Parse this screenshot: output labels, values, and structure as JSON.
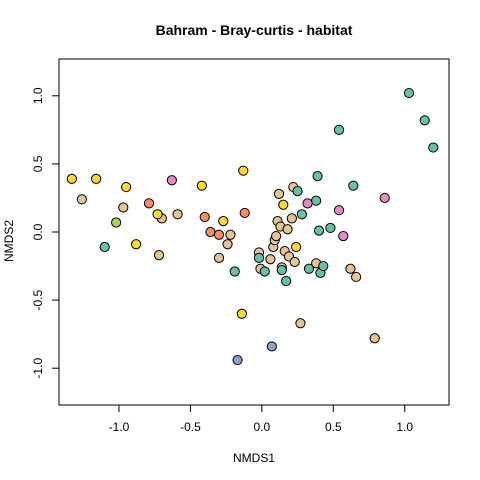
{
  "chart_data": {
    "type": "scatter",
    "title": "Bahram - Bray-curtis - habitat",
    "xlabel": "NMDS1",
    "ylabel": "NMDS2",
    "xlim": [
      -1.42,
      1.31
    ],
    "ylim": [
      -1.27,
      1.27
    ],
    "xticks": [
      -1.0,
      -0.5,
      0.0,
      0.5,
      1.0
    ],
    "xtick_labels": [
      "-1.0",
      "-0.5",
      "0.0",
      "0.5",
      "1.0"
    ],
    "yticks": [
      -1.0,
      -0.5,
      0.0,
      0.5,
      1.0
    ],
    "ytick_labels": [
      "-1.0",
      "-0.5",
      "0.0",
      "0.5",
      "1.0"
    ],
    "grid": false,
    "legend": "none",
    "series": [
      {
        "color": "#E5C494",
        "points": [
          [
            -1.26,
            0.24
          ],
          [
            -0.97,
            0.18
          ],
          [
            -0.7,
            0.1
          ],
          [
            -0.59,
            0.13
          ],
          [
            -0.72,
            -0.17
          ],
          [
            -0.3,
            -0.19
          ],
          [
            -0.22,
            -0.02
          ],
          [
            -0.24,
            -0.09
          ],
          [
            -0.02,
            -0.15
          ],
          [
            -0.01,
            -0.27
          ],
          [
            0.06,
            -0.2
          ],
          [
            0.08,
            -0.11
          ],
          [
            0.09,
            -0.06
          ],
          [
            0.1,
            -0.03
          ],
          [
            0.11,
            0.08
          ],
          [
            0.12,
            0.28
          ],
          [
            0.13,
            0.04
          ],
          [
            0.14,
            -0.26
          ],
          [
            0.16,
            -0.14
          ],
          [
            0.18,
            0.02
          ],
          [
            0.19,
            -0.18
          ],
          [
            0.21,
            0.1
          ],
          [
            0.22,
            0.33
          ],
          [
            0.23,
            -0.22
          ],
          [
            0.27,
            -0.67
          ],
          [
            0.38,
            -0.23
          ],
          [
            0.62,
            -0.27
          ],
          [
            0.66,
            -0.33
          ],
          [
            0.79,
            -0.78
          ]
        ]
      },
      {
        "color": "#66C2A5",
        "points": [
          [
            -1.1,
            -0.11
          ],
          [
            -0.19,
            -0.29
          ],
          [
            -0.02,
            -0.19
          ],
          [
            0.02,
            -0.29
          ],
          [
            0.14,
            -0.28
          ],
          [
            0.17,
            -0.36
          ],
          [
            0.25,
            0.3
          ],
          [
            0.28,
            0.13
          ],
          [
            0.33,
            -0.27
          ],
          [
            0.38,
            0.23
          ],
          [
            0.39,
            0.41
          ],
          [
            0.4,
            0.01
          ],
          [
            0.41,
            -0.3
          ],
          [
            0.43,
            -0.25
          ],
          [
            0.48,
            0.03
          ],
          [
            0.54,
            0.75
          ],
          [
            0.64,
            0.34
          ],
          [
            1.03,
            1.02
          ],
          [
            1.14,
            0.82
          ],
          [
            1.2,
            0.62
          ]
        ]
      },
      {
        "color": "#FFD92F",
        "points": [
          [
            -1.33,
            0.39
          ],
          [
            -1.16,
            0.39
          ],
          [
            -0.95,
            0.33
          ],
          [
            -0.88,
            -0.09
          ],
          [
            -0.73,
            0.13
          ],
          [
            -0.42,
            0.34
          ],
          [
            -0.27,
            0.08
          ],
          [
            -0.13,
            0.45
          ],
          [
            -0.14,
            -0.6
          ],
          [
            0.15,
            0.2
          ],
          [
            0.24,
            -0.11
          ]
        ]
      },
      {
        "color": "#FC8D62",
        "points": [
          [
            -0.79,
            0.21
          ],
          [
            -0.4,
            0.11
          ],
          [
            -0.36,
            0.0
          ],
          [
            -0.3,
            -0.02
          ],
          [
            -0.12,
            0.14
          ]
        ]
      },
      {
        "color": "#E78AC3",
        "points": [
          [
            -0.63,
            0.38
          ],
          [
            0.32,
            0.21
          ],
          [
            0.54,
            0.16
          ],
          [
            0.57,
            -0.03
          ],
          [
            0.86,
            0.25
          ]
        ]
      },
      {
        "color": "#8DA0CB",
        "points": [
          [
            -0.17,
            -0.94
          ],
          [
            0.07,
            -0.84
          ]
        ]
      },
      {
        "color": "#A6D854",
        "points": [
          [
            -1.02,
            0.07
          ]
        ]
      }
    ]
  }
}
